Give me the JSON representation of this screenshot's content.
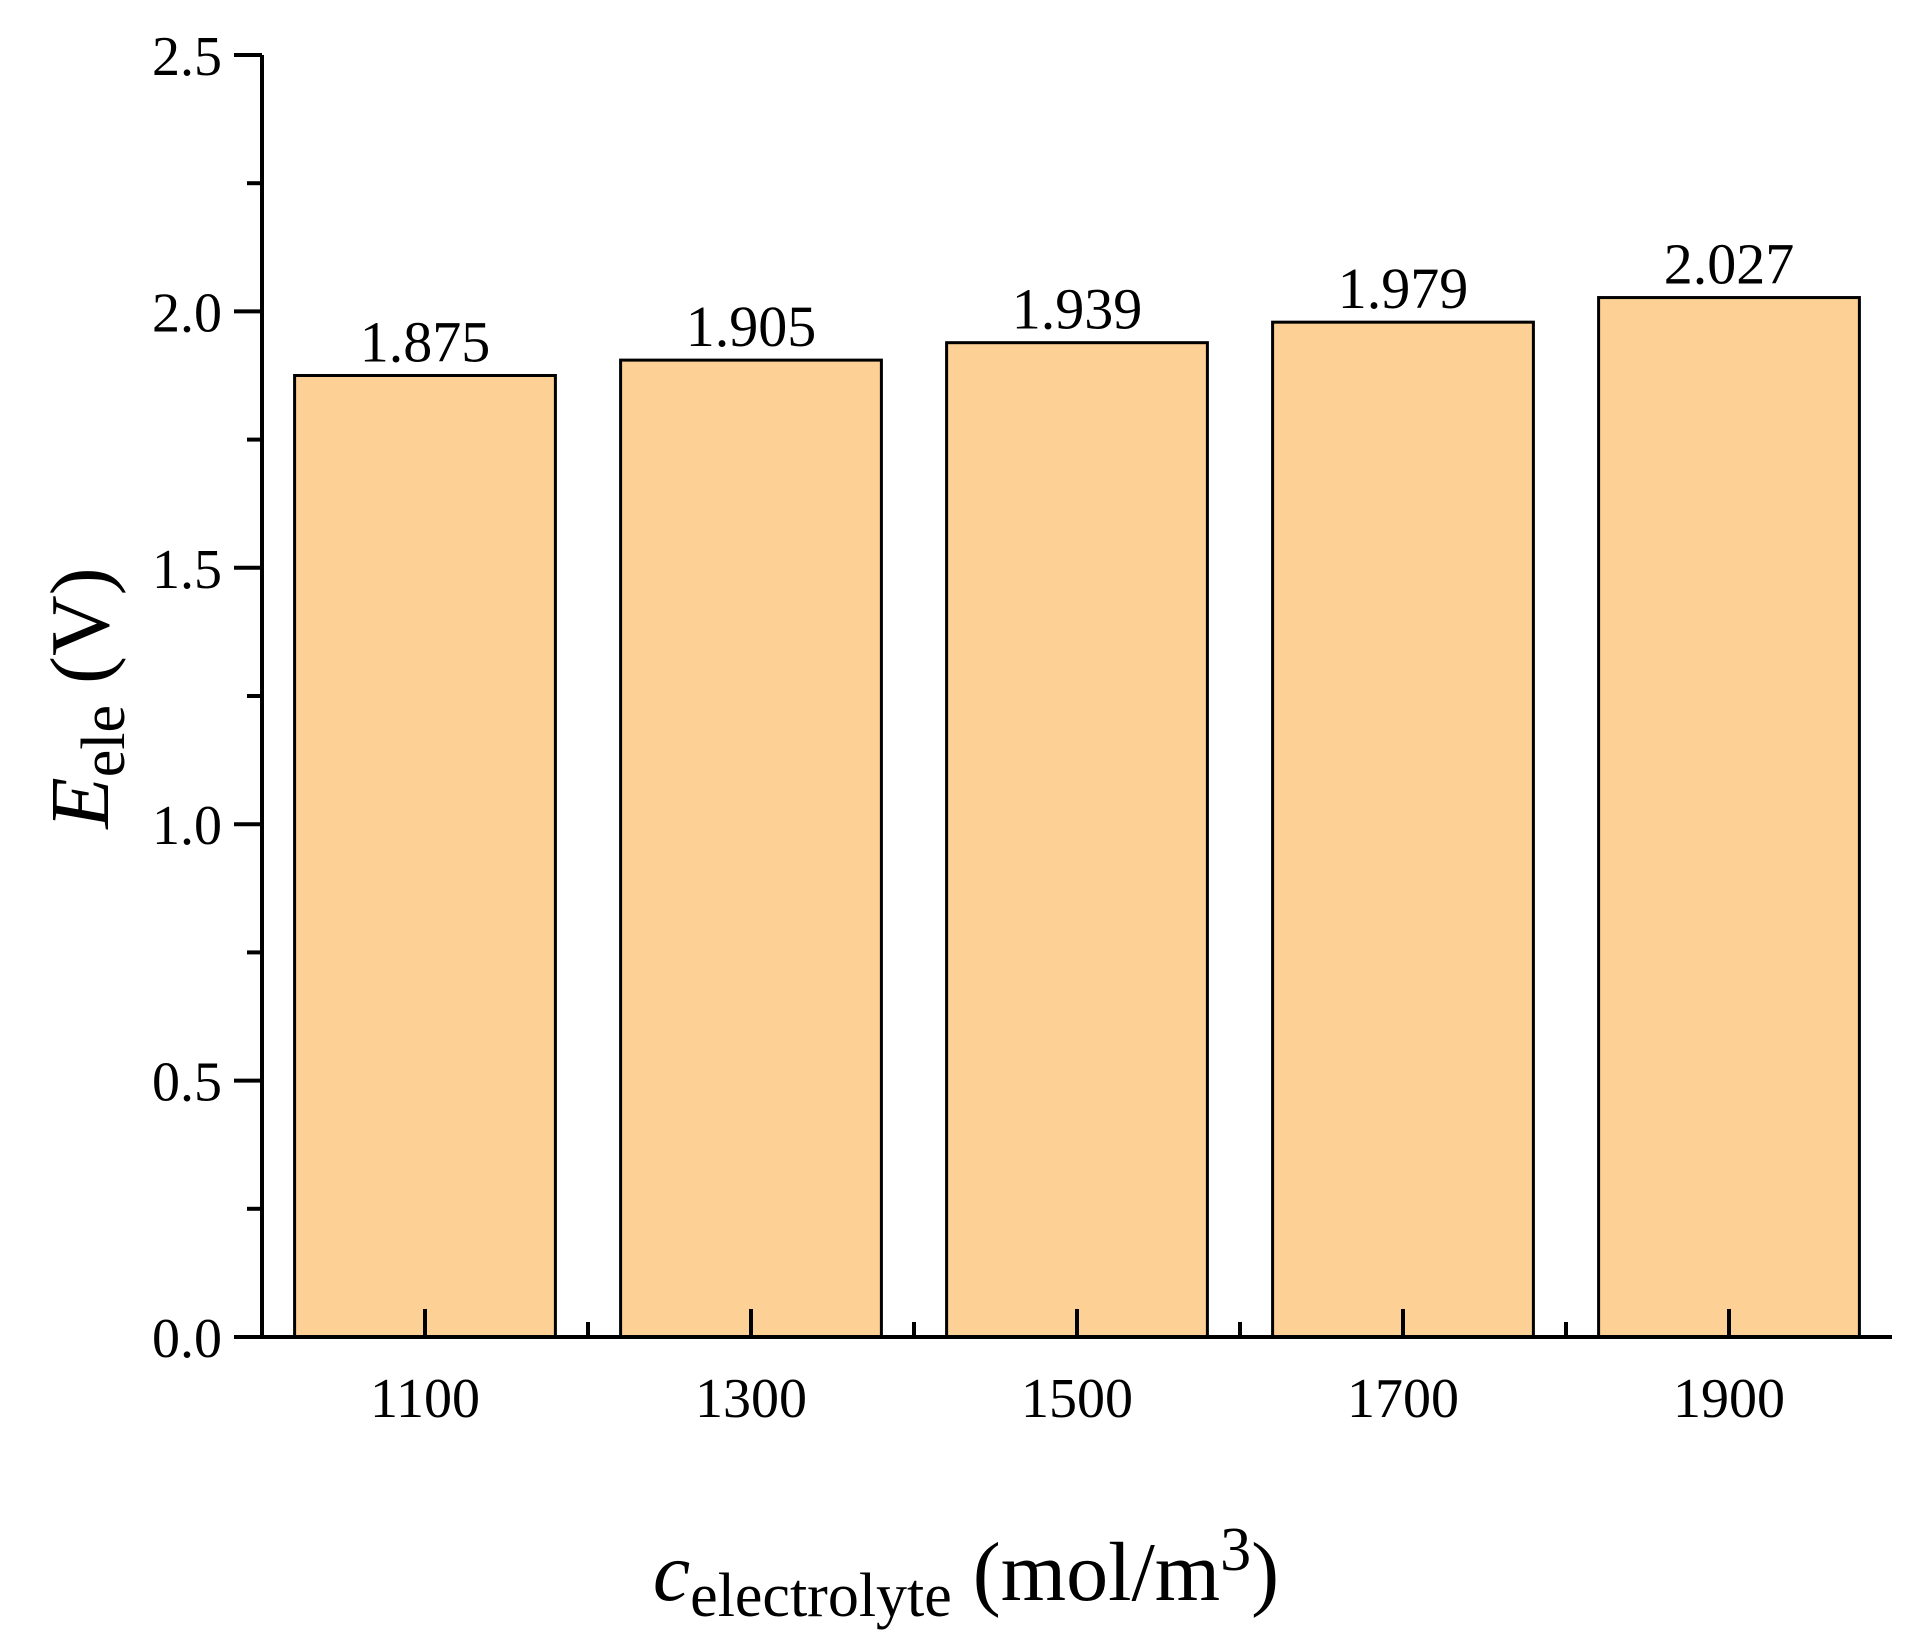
{
  "chart_data": {
    "type": "bar",
    "title": "",
    "categories": [
      "1100",
      "1300",
      "1500",
      "1700",
      "1900"
    ],
    "values": [
      1.875,
      1.905,
      1.939,
      1.979,
      2.027
    ],
    "data_labels": [
      "1.875",
      "1.905",
      "1.939",
      "1.979",
      "2.027"
    ],
    "ylim": [
      0,
      2.5
    ],
    "yticks": [
      0.0,
      0.5,
      1.0,
      1.5,
      2.0,
      2.5
    ],
    "ytick_labels": [
      "0.0",
      "0.5",
      "1.0",
      "1.5",
      "2.0",
      "2.5"
    ],
    "xlabel": {
      "main": "c",
      "sub": "electrolyte",
      "unit": " (mol/m",
      "sup": "3",
      "close": ")"
    },
    "ylabel": {
      "main": "E",
      "sub": "ele",
      "unit": " (V)"
    },
    "grid": false,
    "legend": "none",
    "bar_color": "#fdd095",
    "edge_color": "#000000"
  }
}
